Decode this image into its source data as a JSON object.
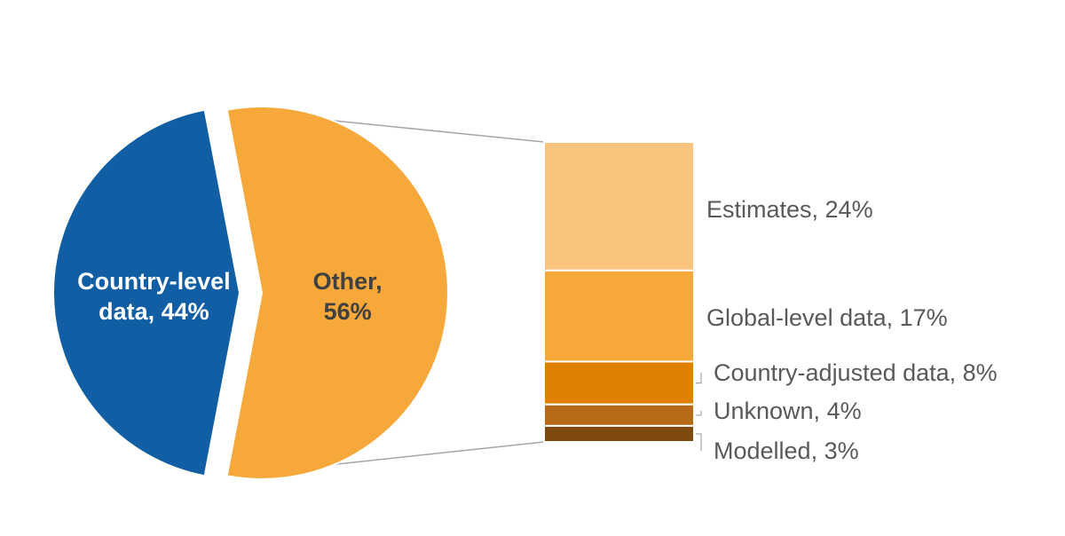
{
  "chart_data": {
    "type": "pie",
    "subtype": "bar-of-pie",
    "pie": {
      "slices": [
        {
          "label": "Country-level data, 44%",
          "line1": "Country-level",
          "line2": "data, 44%",
          "value": 44,
          "color": "#125EA4",
          "label_color": "#FFFFFF",
          "exploded": false
        },
        {
          "label": "Other, 56%",
          "line1": "Other,",
          "line2": "56%",
          "value": 56,
          "color": "#F6A83A",
          "label_color": "#404040",
          "exploded": true
        }
      ]
    },
    "bar": {
      "parent_slice": "Other",
      "segments": [
        {
          "label": "Estimates, 24%",
          "value": 24,
          "color": "#F9C57E"
        },
        {
          "label": "Global-level data, 17%",
          "value": 17,
          "color": "#F6A83A"
        },
        {
          "label": "Country-adjusted data, 8%",
          "value": 8,
          "color": "#E08003"
        },
        {
          "label": "Unknown, 4%",
          "value": 4,
          "color": "#B86B16"
        },
        {
          "label": "Modelled, 3%",
          "value": 3,
          "color": "#7F4A10"
        }
      ]
    },
    "connector_color": "#A6A6A6",
    "label_color": "#595959"
  }
}
